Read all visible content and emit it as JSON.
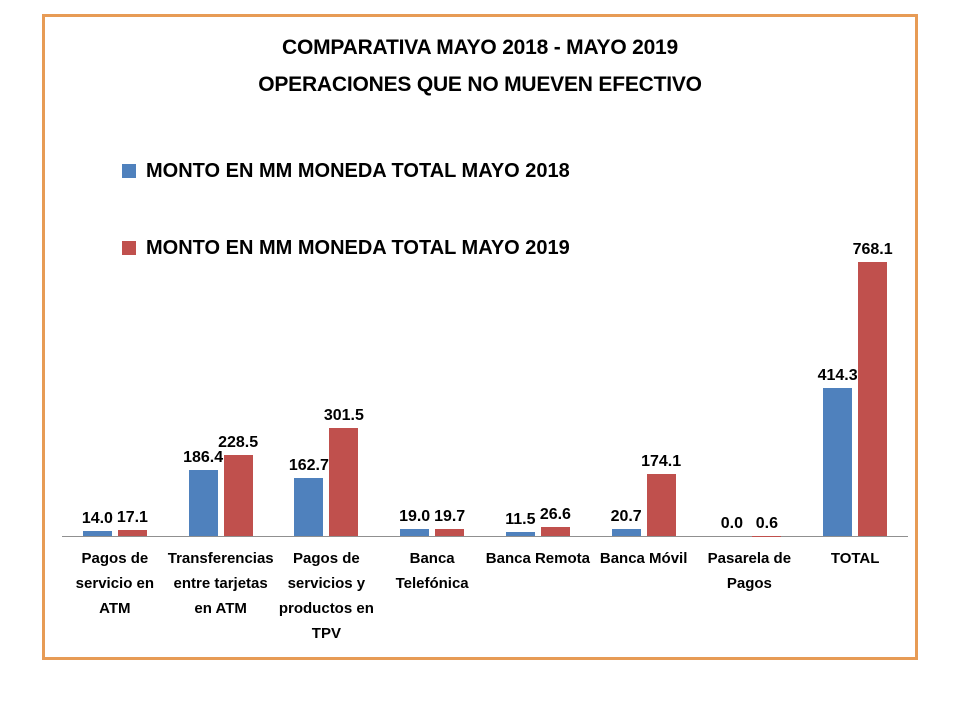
{
  "frame": {
    "border_color": "#E79B55",
    "background": "#FFFFFF"
  },
  "chart_data": {
    "type": "bar",
    "title": "COMPARATIVA MAYO 2018 - MAYO 2019",
    "subtitle": "OPERACIONES QUE NO MUEVEN EFECTIVO",
    "categories": [
      "Pagos de servicio en ATM",
      "Transferencias entre tarjetas en ATM",
      "Pagos de servicios y productos en TPV",
      "Banca Telefónica",
      "Banca Remota",
      "Banca Móvil",
      "Pasarela de Pagos",
      "TOTAL"
    ],
    "series": [
      {
        "name": "MONTO EN MM MONEDA TOTAL MAYO 2018",
        "color": "#4F81BD",
        "values": [
          14.0,
          186.4,
          162.7,
          19.0,
          11.5,
          20.7,
          0.0,
          414.3
        ]
      },
      {
        "name": "MONTO EN MM MONEDA TOTAL MAYO 2019",
        "color": "#C0504D",
        "values": [
          17.1,
          228.5,
          301.5,
          19.7,
          26.6,
          174.1,
          0.6,
          768.1
        ]
      }
    ],
    "data_labels": true,
    "data_label_format": "0.0",
    "ylim": [
      0,
      768.1
    ],
    "grid": false,
    "y_axis_visible": false,
    "x_axis_line_color": "#909090",
    "legend_position": "top-left",
    "legend_marker": "square-icon"
  }
}
